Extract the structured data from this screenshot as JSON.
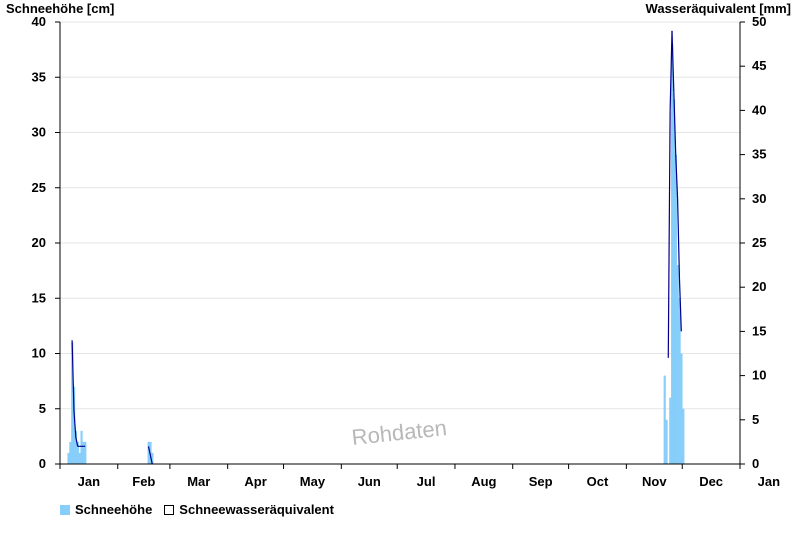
{
  "chart_data": {
    "type": "bar",
    "title": "",
    "xlabel": "",
    "ylabel": "Schneehöhe [cm]",
    "ylabel_right": "Wasseräquivalent [mm]",
    "ylim": [
      0,
      40
    ],
    "ylim_right": [
      0,
      50
    ],
    "yticks": [
      0,
      5,
      10,
      15,
      20,
      25,
      30,
      35,
      40
    ],
    "yticks_right": [
      0,
      5,
      10,
      15,
      20,
      25,
      30,
      35,
      40,
      45,
      50
    ],
    "month_labels": [
      "Jan",
      "Feb",
      "Mar",
      "Apr",
      "May",
      "Jun",
      "Jul",
      "Aug",
      "Sep",
      "Oct",
      "Nov",
      "Dec",
      "Jan"
    ],
    "grid": true,
    "legend_position": "bottom-left",
    "watermark": "Rohdaten",
    "colors": {
      "snow_depth": "#87cefa",
      "swe": "#00008b",
      "grid": "#e6e6e6"
    },
    "series": [
      {
        "name": "Schneehöhe",
        "kind": "bar",
        "axis": "left",
        "points": [
          {
            "day": 5,
            "value": 1
          },
          {
            "day": 6,
            "value": 2
          },
          {
            "day": 7,
            "value": 11
          },
          {
            "day": 8,
            "value": 7
          },
          {
            "day": 9,
            "value": 3
          },
          {
            "day": 10,
            "value": 2
          },
          {
            "day": 11,
            "value": 1
          },
          {
            "day": 12,
            "value": 3
          },
          {
            "day": 13,
            "value": 2
          },
          {
            "day": 14,
            "value": 2
          },
          {
            "day": 48,
            "value": 2
          },
          {
            "day": 49,
            "value": 2
          },
          {
            "day": 50,
            "value": 1
          },
          {
            "day": 325,
            "value": 8
          },
          {
            "day": 326,
            "value": 4
          },
          {
            "day": 327,
            "value": 0
          },
          {
            "day": 328,
            "value": 6
          },
          {
            "day": 329,
            "value": 38
          },
          {
            "day": 330,
            "value": 33
          },
          {
            "day": 331,
            "value": 28
          },
          {
            "day": 332,
            "value": 18
          },
          {
            "day": 333,
            "value": 15
          },
          {
            "day": 334,
            "value": 10
          },
          {
            "day": 335,
            "value": 5
          }
        ]
      },
      {
        "name": "Schneewasseräquivalent",
        "kind": "line",
        "axis": "right",
        "points": [
          {
            "day": 7,
            "value": 14
          },
          {
            "day": 8,
            "value": 6
          },
          {
            "day": 9,
            "value": 3
          },
          {
            "day": 10,
            "value": 2
          },
          {
            "day": 11,
            "value": 2
          },
          {
            "day": 12,
            "value": 2
          },
          {
            "day": 13,
            "value": 2
          },
          {
            "day": 14,
            "value": 2
          },
          {
            "day": 48,
            "value": 2
          },
          {
            "day": 49,
            "value": 1
          },
          {
            "day": 50,
            "value": 0
          },
          {
            "day": 327,
            "value": 12
          },
          {
            "day": 328,
            "value": 40
          },
          {
            "day": 329,
            "value": 49
          },
          {
            "day": 330,
            "value": 42
          },
          {
            "day": 331,
            "value": 35
          },
          {
            "day": 332,
            "value": 30
          },
          {
            "day": 333,
            "value": 21
          },
          {
            "day": 334,
            "value": 15
          }
        ]
      }
    ]
  }
}
